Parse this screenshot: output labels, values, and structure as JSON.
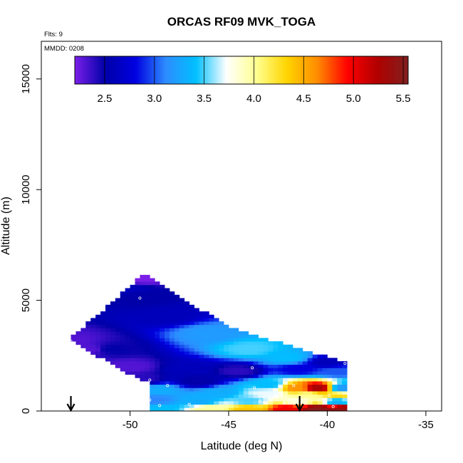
{
  "chart_data": {
    "type": "heatmap",
    "title": "ORCAS RF09 MVK_TOGA",
    "flights_note": "Flts: 9",
    "mmdd_note": "MMDD: 0208",
    "xlabel": "Latitude (deg N)",
    "ylabel": "Altitude (m)",
    "xlim": [
      -54.5,
      -34.2
    ],
    "ylim": [
      0,
      16700
    ],
    "xticks": [
      -50,
      -45,
      -40,
      -35
    ],
    "xtick_labels": [
      "-50",
      "-45",
      "-40",
      "-35"
    ],
    "yticks": [
      0,
      5000,
      10000,
      15000
    ],
    "ytick_labels": [
      "0",
      "5000",
      "10000",
      "15000"
    ],
    "colorbar": {
      "range": [
        2.2,
        5.55
      ],
      "ticks": [
        2.5,
        3.0,
        3.5,
        4.0,
        4.5,
        5.0,
        5.5
      ],
      "tick_labels": [
        "2.5",
        "3.0",
        "3.5",
        "4.0",
        "4.5",
        "5.0",
        "5.5"
      ],
      "colors": [
        "#7b1fe8",
        "#0000a8",
        "#0000e0",
        "#2e8cff",
        "#00c0ff",
        "#ffffff",
        "#ffff90",
        "#ffd400",
        "#ff8c00",
        "#ff0000",
        "#b00000",
        "#802020"
      ]
    },
    "grid_step": {
      "lat": 0.25,
      "alt": 150
    },
    "regions": [
      {
        "lat_from": -53.0,
        "lat_to": -49.3,
        "alt_bottom_from": 3150,
        "alt_bottom_to": 1300,
        "alt_top_from": 3300,
        "alt_top_to": 6200
      },
      {
        "lat_from": -49.3,
        "lat_to": -45.0,
        "alt_bottom_from": 1300,
        "alt_bottom_to": 1150,
        "alt_top_from": 6200,
        "alt_top_to": 3800
      },
      {
        "lat_from": -45.0,
        "lat_to": -41.0,
        "alt_bottom_from": 1150,
        "alt_bottom_to": 0,
        "alt_top_from": 3800,
        "alt_top_to": 2700
      },
      {
        "lat_from": -41.0,
        "lat_to": -38.9,
        "alt_bottom_from": 0,
        "alt_bottom_to": 200,
        "alt_top_from": 2700,
        "alt_top_to": 2200
      },
      {
        "lat_from": -49.0,
        "lat_to": -38.9,
        "alt_bottom_from": 0,
        "alt_bottom_to": 0,
        "alt_top_from": 1300,
        "alt_top_to": 1200
      }
    ],
    "samples": [
      {
        "lat": -53.0,
        "alt": 3150,
        "value": 2.3
      },
      {
        "lat": -50.0,
        "alt": 5500,
        "value": 2.6
      },
      {
        "lat": -49.5,
        "alt": 6000,
        "value": 2.2
      },
      {
        "lat": -49.5,
        "alt": 5200,
        "value": 2.5
      },
      {
        "lat": -48.2,
        "alt": 4300,
        "value": 2.6
      },
      {
        "lat": -46.0,
        "alt": 3500,
        "value": 3.2
      },
      {
        "lat": -44.0,
        "alt": 2800,
        "value": 3.5
      },
      {
        "lat": -42.0,
        "alt": 2400,
        "value": 3.4
      },
      {
        "lat": -40.0,
        "alt": 2200,
        "value": 2.6
      },
      {
        "lat": -51.0,
        "alt": 2800,
        "value": 2.5
      },
      {
        "lat": -52.0,
        "alt": 2800,
        "value": 2.3
      },
      {
        "lat": -50.0,
        "alt": 2000,
        "value": 2.3
      },
      {
        "lat": -47.0,
        "alt": 1900,
        "value": 2.6
      },
      {
        "lat": -44.5,
        "alt": 1800,
        "value": 2.4
      },
      {
        "lat": -41.5,
        "alt": 1900,
        "value": 2.8
      },
      {
        "lat": -39.5,
        "alt": 1800,
        "value": 3.0
      },
      {
        "lat": -49.5,
        "alt": 1450,
        "value": 2.4
      },
      {
        "lat": -46.5,
        "alt": 1350,
        "value": 2.5
      },
      {
        "lat": -43.0,
        "alt": 1200,
        "value": 3.4
      },
      {
        "lat": -41.5,
        "alt": 1050,
        "value": 4.6
      },
      {
        "lat": -40.5,
        "alt": 1050,
        "value": 5.3
      },
      {
        "lat": -39.2,
        "alt": 1050,
        "value": 3.2
      },
      {
        "lat": -48.5,
        "alt": 950,
        "value": 3.3
      },
      {
        "lat": -45.5,
        "alt": 850,
        "value": 3.3
      },
      {
        "lat": -43.0,
        "alt": 800,
        "value": 3.7
      },
      {
        "lat": -41.0,
        "alt": 700,
        "value": 4.0
      },
      {
        "lat": -39.5,
        "alt": 650,
        "value": 4.3
      },
      {
        "lat": -48.8,
        "alt": 500,
        "value": 3.1
      },
      {
        "lat": -46.5,
        "alt": 450,
        "value": 3.3
      },
      {
        "lat": -44.0,
        "alt": 450,
        "value": 3.5
      },
      {
        "lat": -41.5,
        "alt": 450,
        "value": 3.8
      },
      {
        "lat": -39.5,
        "alt": 450,
        "value": 3.3
      },
      {
        "lat": -48.5,
        "alt": 100,
        "value": 3.4
      },
      {
        "lat": -46.0,
        "alt": 100,
        "value": 4.0
      },
      {
        "lat": -44.0,
        "alt": 100,
        "value": 4.4
      },
      {
        "lat": -42.0,
        "alt": 100,
        "value": 5.0
      },
      {
        "lat": -40.5,
        "alt": 100,
        "value": 5.5
      },
      {
        "lat": -39.2,
        "alt": 100,
        "value": 5.4
      }
    ],
    "markers": [
      {
        "lat": -53.0,
        "alt": 3150
      },
      {
        "lat": -49.6,
        "alt": 6100
      },
      {
        "lat": -49.5,
        "alt": 5100
      },
      {
        "lat": -49.0,
        "alt": 1400
      },
      {
        "lat": -48.1,
        "alt": 1150
      },
      {
        "lat": -49.0,
        "alt": 500
      },
      {
        "lat": -48.5,
        "alt": 250
      },
      {
        "lat": -47.0,
        "alt": 300
      },
      {
        "lat": -43.8,
        "alt": 1950
      },
      {
        "lat": -43.7,
        "alt": 1050
      },
      {
        "lat": -43.4,
        "alt": 450
      },
      {
        "lat": -42.2,
        "alt": 350
      },
      {
        "lat": -41.7,
        "alt": 1150
      },
      {
        "lat": -39.9,
        "alt": 700
      },
      {
        "lat": -39.7,
        "alt": 200
      },
      {
        "lat": -39.1,
        "alt": 2150
      }
    ],
    "arrows": [
      {
        "lat": -53.0
      },
      {
        "lat": -41.4
      }
    ]
  }
}
